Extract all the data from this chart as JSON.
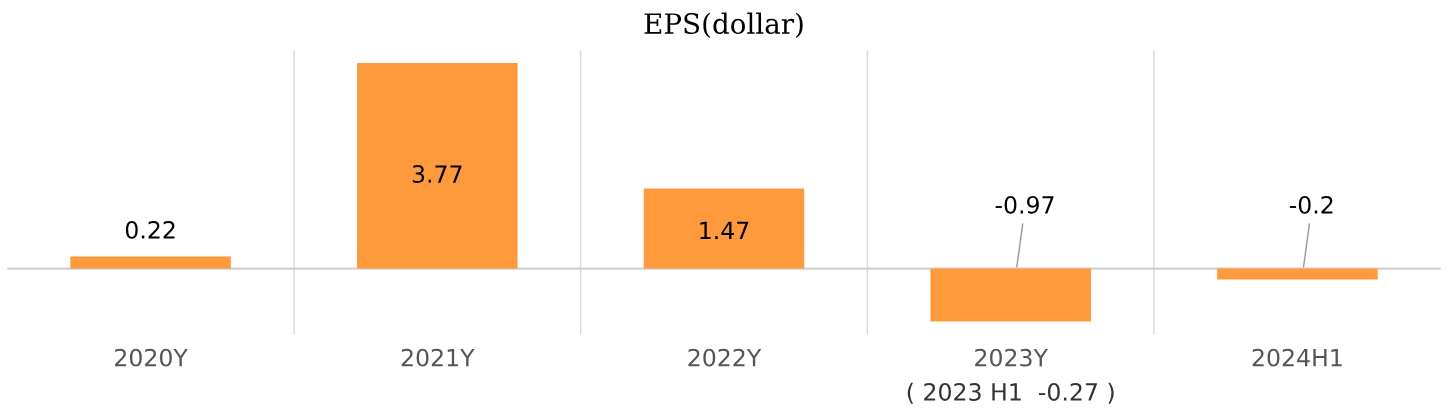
{
  "chart_data": {
    "type": "bar",
    "title": "EPS(dollar)",
    "categories": [
      "2020Y",
      "2021Y",
      "2022Y",
      "2023Y",
      "2024H1"
    ],
    "values": [
      0.22,
      3.77,
      1.47,
      -0.97,
      -0.2
    ],
    "color": "#ff9a3c",
    "data_labels": true,
    "grid": false,
    "annotations": [
      "( 2023 H1  -0.27 )"
    ]
  }
}
